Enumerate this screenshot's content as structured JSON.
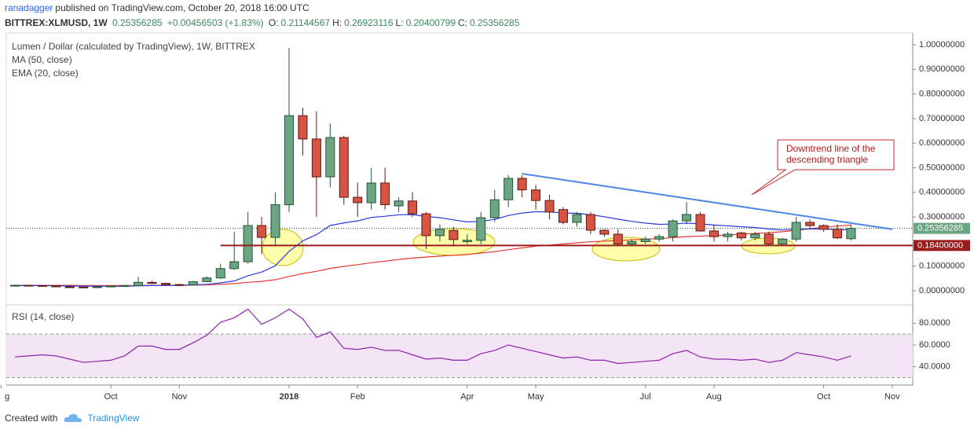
{
  "header": {
    "user": "ranadagger",
    "text": "published on TradingView.com, October 20, 2018 16:00 UTC",
    "symbol": "BITTREX:XLMUSD, 1W",
    "price": "0.25356285",
    "change": "+0.00456503 (+1.83%)",
    "ohlc": [
      {
        "label": "O:",
        "value": "0.21144567"
      },
      {
        "label": "H:",
        "value": "0.26923116"
      },
      {
        "label": "L:",
        "value": "0.20400799"
      },
      {
        "label": "C:",
        "value": "0.25356285"
      }
    ]
  },
  "footer": {
    "text": "Created with",
    "brand": "TradingView"
  },
  "chart_data": [
    {
      "type": "candlestick",
      "title": "Lumen / Dollar (calculated by TradingView), 1W, BITTREX",
      "categories": [
        null,
        null,
        null,
        null,
        null,
        null,
        null,
        null,
        null,
        null,
        null,
        null,
        null,
        null,
        null,
        null,
        null,
        null,
        null,
        null,
        null,
        null,
        null,
        null,
        null,
        null,
        null,
        null,
        null,
        null,
        null,
        null,
        null,
        null,
        null,
        null,
        null,
        null,
        null,
        null,
        null,
        null,
        null,
        null,
        null,
        null,
        null,
        null,
        null,
        null,
        null,
        null,
        null,
        null,
        null,
        null,
        null,
        null,
        null,
        null,
        null,
        null
      ],
      "open": [
        0.02,
        0.022,
        0.021,
        0.02,
        0.016,
        0.015,
        0.014,
        0.016,
        0.019,
        0.021,
        0.034,
        0.03,
        0.025,
        0.024,
        0.037,
        0.052,
        0.09,
        0.118,
        0.265,
        0.217,
        0.35,
        0.712,
        0.617,
        0.463,
        0.623,
        0.38,
        0.358,
        0.438,
        0.345,
        0.365,
        0.313,
        0.224,
        0.245,
        0.2,
        0.205,
        0.297,
        0.37,
        0.457,
        0.41,
        0.367,
        0.33,
        0.278,
        0.31,
        0.246,
        0.23,
        0.19,
        0.2,
        0.21,
        0.22,
        0.284,
        0.31,
        0.243,
        0.22,
        0.235,
        0.215,
        0.23,
        0.19,
        0.21,
        0.278,
        0.265,
        0.25,
        0.21144567
      ],
      "high": [
        0.025,
        0.024,
        0.023,
        0.022,
        0.019,
        0.017,
        0.017,
        0.02,
        0.023,
        0.057,
        0.04,
        0.033,
        0.029,
        0.04,
        0.058,
        0.11,
        0.24,
        0.32,
        0.3,
        0.4,
        0.987,
        0.744,
        0.73,
        0.68,
        0.63,
        0.44,
        0.5,
        0.5,
        0.38,
        0.4,
        0.32,
        0.27,
        0.26,
        0.23,
        0.32,
        0.41,
        0.47,
        0.47,
        0.43,
        0.39,
        0.34,
        0.32,
        0.32,
        0.25,
        0.25,
        0.21,
        0.22,
        0.23,
        0.29,
        0.36,
        0.32,
        0.27,
        0.24,
        0.24,
        0.24,
        0.24,
        0.215,
        0.3,
        0.29,
        0.27,
        0.27,
        0.26923116
      ],
      "low": [
        0.017,
        0.019,
        0.018,
        0.015,
        0.013,
        0.012,
        0.012,
        0.014,
        0.016,
        0.02,
        0.027,
        0.022,
        0.02,
        0.022,
        0.035,
        0.048,
        0.085,
        0.11,
        0.15,
        0.18,
        0.32,
        0.55,
        0.3,
        0.42,
        0.35,
        0.3,
        0.33,
        0.33,
        0.32,
        0.3,
        0.17,
        0.2,
        0.18,
        0.19,
        0.19,
        0.28,
        0.34,
        0.38,
        0.33,
        0.29,
        0.27,
        0.26,
        0.23,
        0.22,
        0.18,
        0.18,
        0.19,
        0.2,
        0.2,
        0.27,
        0.24,
        0.2,
        0.2,
        0.205,
        0.205,
        0.185,
        0.185,
        0.2,
        0.25,
        0.24,
        0.21,
        0.20400799
      ],
      "close": [
        0.022,
        0.021,
        0.02,
        0.016,
        0.015,
        0.014,
        0.016,
        0.019,
        0.021,
        0.034,
        0.03,
        0.025,
        0.024,
        0.037,
        0.052,
        0.09,
        0.118,
        0.265,
        0.217,
        0.35,
        0.712,
        0.617,
        0.463,
        0.623,
        0.38,
        0.358,
        0.438,
        0.35,
        0.365,
        0.313,
        0.224,
        0.25,
        0.208,
        0.205,
        0.297,
        0.37,
        0.457,
        0.41,
        0.367,
        0.32,
        0.278,
        0.31,
        0.246,
        0.23,
        0.19,
        0.2,
        0.21,
        0.22,
        0.284,
        0.31,
        0.243,
        0.22,
        0.23,
        0.215,
        0.23,
        0.19,
        0.21,
        0.278,
        0.265,
        0.25,
        0.215,
        0.25356285
      ],
      "up_color": "#6ba583",
      "up_border": "#225437",
      "down_color": "#d75442",
      "down_border": "#5b1a13",
      "series": [
        {
          "name": "MA (50, close)",
          "color": "#e53935",
          "values": [
            0.022,
            0.022,
            0.022,
            0.022,
            0.022,
            0.021,
            0.021,
            0.021,
            0.021,
            0.021,
            0.022,
            0.022,
            0.022,
            0.023,
            0.024,
            0.026,
            0.029,
            0.034,
            0.038,
            0.045,
            0.058,
            0.07,
            0.079,
            0.091,
            0.099,
            0.106,
            0.114,
            0.12,
            0.127,
            0.133,
            0.137,
            0.141,
            0.144,
            0.148,
            0.153,
            0.159,
            0.167,
            0.174,
            0.181,
            0.186,
            0.19,
            0.195,
            0.199,
            0.202,
            0.204,
            0.207,
            0.21,
            0.212,
            0.216,
            0.22,
            0.222,
            0.224,
            0.227,
            0.23,
            0.233,
            0.236,
            0.24,
            0.246,
            0.252,
            0.258,
            0.263,
            0.267
          ]
        },
        {
          "name": "EMA (20, close)",
          "color": "#2a3bdc",
          "values": [
            0.021,
            0.021,
            0.021,
            0.02,
            0.019,
            0.019,
            0.018,
            0.018,
            0.018,
            0.02,
            0.021,
            0.022,
            0.022,
            0.024,
            0.026,
            0.032,
            0.04,
            0.061,
            0.076,
            0.102,
            0.16,
            0.203,
            0.228,
            0.265,
            0.276,
            0.284,
            0.298,
            0.303,
            0.309,
            0.31,
            0.302,
            0.297,
            0.288,
            0.28,
            0.282,
            0.29,
            0.306,
            0.316,
            0.321,
            0.321,
            0.316,
            0.315,
            0.309,
            0.301,
            0.291,
            0.282,
            0.275,
            0.27,
            0.271,
            0.275,
            0.272,
            0.267,
            0.264,
            0.26,
            0.257,
            0.251,
            0.247,
            0.25,
            0.251,
            0.251,
            0.248,
            0.248
          ]
        }
      ],
      "support": {
        "value": 0.184,
        "label": "0.18400000",
        "from": 15,
        "color": "#9b1c1c"
      },
      "trendline": {
        "x": [
          37,
          64
        ],
        "y": [
          0.476,
          0.25
        ],
        "color": "#4a86e8"
      },
      "annotation": {
        "lines": [
          "Downtrend line of the",
          "descending triangle"
        ],
        "color": "#b71c1c"
      },
      "xlim": [
        -0.63,
        65.5
      ],
      "xticks": [
        {
          "value": -1,
          "label": "g"
        },
        {
          "value": 7,
          "label": "Oct"
        },
        {
          "value": 12,
          "label": "Nov"
        },
        {
          "value": 20,
          "label": "2018"
        },
        {
          "value": 25,
          "label": "Feb"
        },
        {
          "value": 33,
          "label": "Apr"
        },
        {
          "value": 38,
          "label": "May"
        },
        {
          "value": 46,
          "label": "Jul"
        },
        {
          "value": 51,
          "label": "Aug"
        },
        {
          "value": 59,
          "label": "Oct"
        },
        {
          "value": 64,
          "label": "Nov"
        }
      ],
      "ylim": [
        -0.048,
        1.048
      ],
      "yticks": [
        {
          "value": 0,
          "label": "0.00000000"
        },
        {
          "value": 0.1,
          "label": "0.10000000"
        },
        {
          "value": 0.3,
          "label": "0.30000000"
        },
        {
          "value": 0.4,
          "label": "0.40000000"
        },
        {
          "value": 0.5,
          "label": "0.50000000"
        },
        {
          "value": 0.6,
          "label": "0.60000000"
        },
        {
          "value": 0.7,
          "label": "0.70000000"
        },
        {
          "value": 0.8,
          "label": "0.80000000"
        },
        {
          "value": 0.9,
          "label": "0.90000000"
        },
        {
          "value": 1.0,
          "label": "1.00000000"
        }
      ]
    },
    {
      "type": "line",
      "series": [
        {
          "name": "RSI (14, close)",
          "color": "#8e24aa",
          "values": [
            49,
            50,
            51,
            50,
            47,
            44,
            45,
            46,
            50,
            59,
            59,
            56,
            56,
            62,
            69,
            81,
            85,
            93,
            79,
            85,
            93,
            84,
            67,
            72,
            57,
            56,
            58,
            55,
            55,
            51,
            47,
            48,
            46,
            46,
            52,
            55,
            60,
            57,
            54,
            51,
            48,
            49,
            46,
            46,
            43,
            44,
            45,
            46,
            52,
            55,
            49,
            47,
            47,
            46,
            47,
            44,
            46,
            53,
            51,
            49,
            46,
            50
          ]
        }
      ],
      "bands": [
        70,
        30
      ],
      "band_color": "#f3e5f5",
      "ylim": [
        24.6,
        94.7
      ],
      "yticks": [
        {
          "value": 40,
          "label": "40.0000"
        },
        {
          "value": 60,
          "label": "60.0000"
        },
        {
          "value": 80,
          "label": "80.0000"
        }
      ]
    }
  ]
}
